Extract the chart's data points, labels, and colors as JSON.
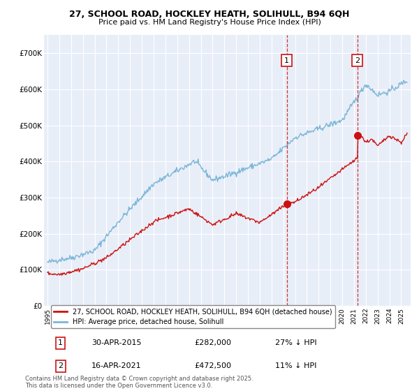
{
  "title_line1": "27, SCHOOL ROAD, HOCKLEY HEATH, SOLIHULL, B94 6QH",
  "title_line2": "Price paid vs. HM Land Registry's House Price Index (HPI)",
  "background_color": "#ffffff",
  "plot_bg_color": "#e8eef8",
  "grid_color": "#ffffff",
  "red_line_label": "27, SCHOOL ROAD, HOCKLEY HEATH, SOLIHULL, B94 6QH (detached house)",
  "blue_line_label": "HPI: Average price, detached house, Solihull",
  "annotation1_label": "1",
  "annotation1_date": "30-APR-2015",
  "annotation1_price": "£282,000",
  "annotation1_hpi": "27% ↓ HPI",
  "annotation1_year": 2015.29,
  "annotation1_value": 282000,
  "annotation2_label": "2",
  "annotation2_date": "16-APR-2021",
  "annotation2_price": "£472,500",
  "annotation2_hpi": "11% ↓ HPI",
  "annotation2_year": 2021.29,
  "annotation2_value": 472500,
  "footer": "Contains HM Land Registry data © Crown copyright and database right 2025.\nThis data is licensed under the Open Government Licence v3.0.",
  "ylim": [
    0,
    750000
  ],
  "xlim_start": 1994.7,
  "xlim_end": 2025.8,
  "y_ticks": [
    0,
    100000,
    200000,
    300000,
    400000,
    500000,
    600000,
    700000
  ],
  "y_tick_labels": [
    "£0",
    "£100K",
    "£200K",
    "£300K",
    "£400K",
    "£500K",
    "£600K",
    "£700K"
  ]
}
